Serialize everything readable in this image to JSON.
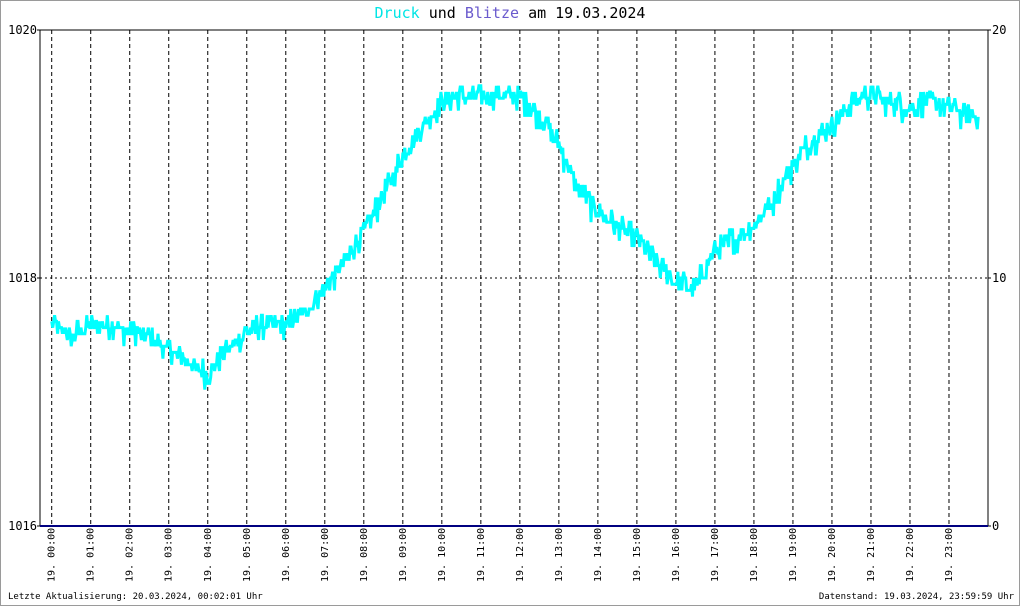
{
  "title": {
    "series1": "Druck",
    "conj": "und",
    "series2": "Blitze",
    "date_prefix": "am",
    "date": "19.03.2024"
  },
  "footer": {
    "left": "Letzte Aktualisierung: 20.03.2024, 00:02:01 Uhr",
    "right": "Datenstand: 19.03.2024, 23:59:59 Uhr"
  },
  "chart_data": {
    "type": "line",
    "x_tick_labels": [
      "19. 00:00",
      "19. 01:00",
      "19. 02:00",
      "19. 03:00",
      "19. 04:00",
      "19. 05:00",
      "19. 06:00",
      "19. 07:00",
      "19. 08:00",
      "19. 09:00",
      "19. 10:00",
      "19. 11:00",
      "19. 12:00",
      "19. 13:00",
      "19. 14:00",
      "19. 15:00",
      "19. 16:00",
      "19. 17:00",
      "19. 18:00",
      "19. 19:00",
      "19. 20:00",
      "19. 21:00",
      "19. 22:00",
      "19. 23:00"
    ],
    "y_left": {
      "range": [
        1016,
        1020
      ],
      "ticks": [
        "1016",
        "1018",
        "1020"
      ]
    },
    "y_right": {
      "range": [
        0,
        20
      ],
      "ticks": [
        "0",
        "10",
        "20"
      ]
    },
    "grid": true,
    "colors": {
      "druck": "#00ffff",
      "blitze": "#000080",
      "grid": "#000000"
    },
    "series": [
      {
        "name": "Druck",
        "axis": "left",
        "x_hours": [
          0,
          0.5,
          1,
          1.5,
          2,
          2.5,
          3,
          3.5,
          4,
          4.5,
          5,
          5.5,
          6,
          6.5,
          7,
          7.5,
          8,
          8.5,
          9,
          9.5,
          10,
          10.5,
          11,
          11.5,
          12,
          12.5,
          13,
          13.5,
          14,
          14.5,
          15,
          15.5,
          16,
          16.5,
          17,
          17.5,
          18,
          18.5,
          19,
          19.5,
          20,
          20.5,
          21,
          21.5,
          22,
          22.5,
          23,
          23.5,
          23.75
        ],
        "values": [
          1017.6,
          1017.5,
          1017.6,
          1017.6,
          1017.55,
          1017.5,
          1017.4,
          1017.3,
          1017.2,
          1017.4,
          1017.55,
          1017.6,
          1017.6,
          1017.7,
          1017.9,
          1018.1,
          1018.35,
          1018.65,
          1018.95,
          1019.2,
          1019.4,
          1019.45,
          1019.45,
          1019.45,
          1019.45,
          1019.3,
          1019.05,
          1018.7,
          1018.5,
          1018.4,
          1018.3,
          1018.1,
          1017.95,
          1017.9,
          1018.2,
          1018.3,
          1018.4,
          1018.6,
          1018.9,
          1019.1,
          1019.2,
          1019.4,
          1019.45,
          1019.4,
          1019.35,
          1019.4,
          1019.35,
          1019.3,
          1019.3
        ]
      },
      {
        "name": "Blitze",
        "axis": "right",
        "x_hours": [
          0,
          23.75
        ],
        "values": [
          0,
          0
        ]
      }
    ]
  }
}
